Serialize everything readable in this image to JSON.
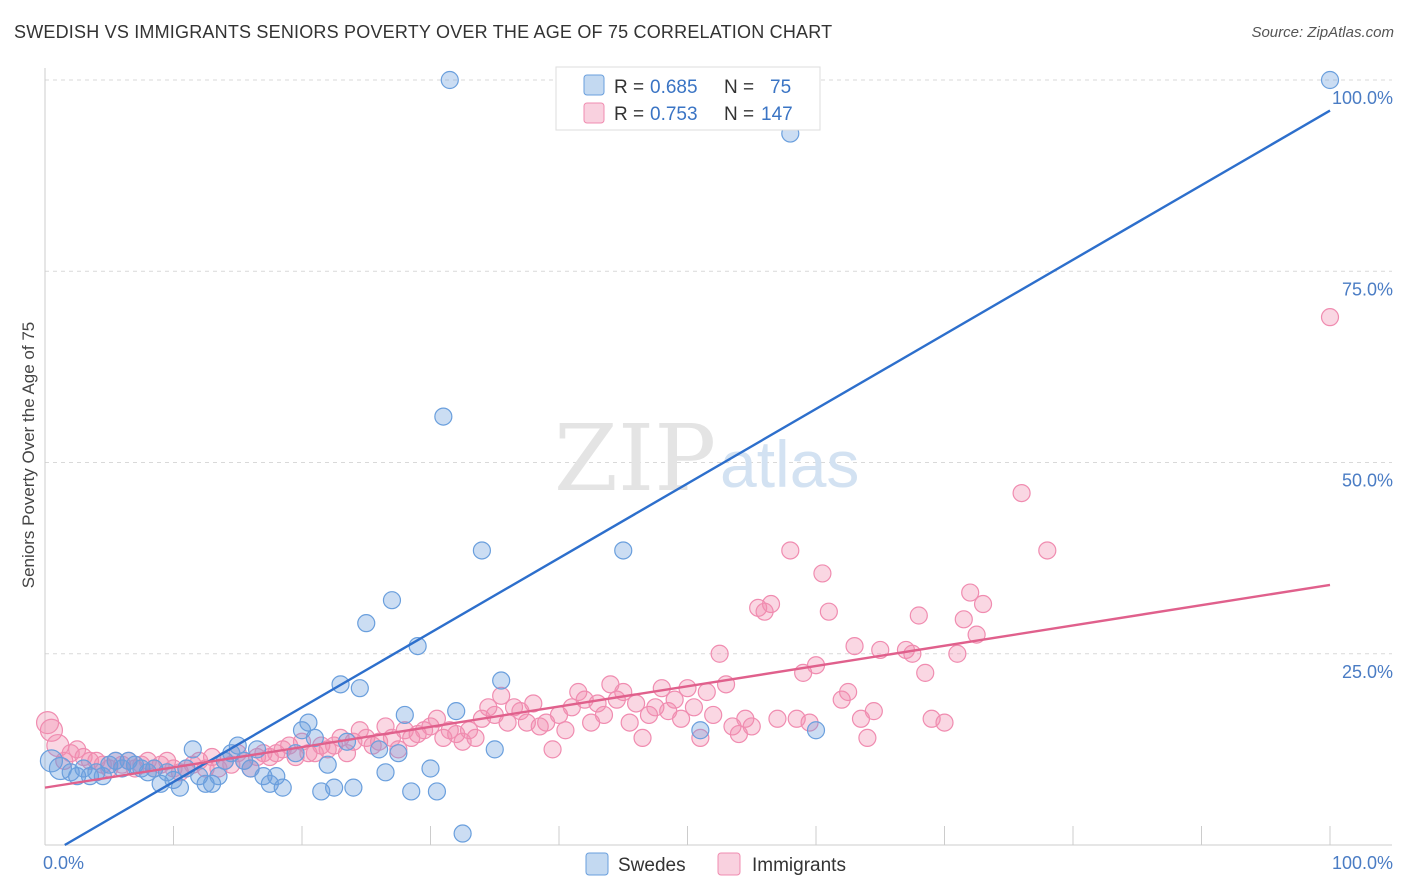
{
  "title": "SWEDISH VS IMMIGRANTS SENIORS POVERTY OVER THE AGE OF 75 CORRELATION CHART",
  "source": "Source: ZipAtlas.com",
  "watermark": {
    "zip": "ZIP",
    "atlas": "atlas"
  },
  "colors": {
    "swedes": "#6a9fdd",
    "swedes_line": "#2d6fcc",
    "immigrants": "#f08cb0",
    "immigrants_line": "#e0608c"
  },
  "legend": {
    "r_label": "R =",
    "n_label": "N =",
    "rows": [
      {
        "r": "0.685",
        "n": "75"
      },
      {
        "r": "0.753",
        "n": "147"
      }
    ]
  },
  "chart_data": {
    "type": "scatter",
    "title": "SWEDISH VS IMMIGRANTS SENIORS POVERTY OVER THE AGE OF 75 CORRELATION CHART",
    "xlabel": "",
    "ylabel": "Seniors Poverty Over the Age of 75",
    "xlim": [
      0,
      100
    ],
    "ylim": [
      0,
      100
    ],
    "x_tick_labels": [
      "0.0%",
      "100.0%"
    ],
    "y_tick_labels": [
      "25.0%",
      "50.0%",
      "75.0%",
      "100.0%"
    ],
    "y_ticks": [
      25,
      50,
      75,
      100
    ],
    "grid": true,
    "legend_position": "top-center",
    "series": [
      {
        "name": "Swedes",
        "trend": [
          [
            0,
            -1.5
          ],
          [
            100,
            96
          ]
        ],
        "points": [
          [
            0.5,
            11
          ],
          [
            1.2,
            10
          ],
          [
            2,
            9.5
          ],
          [
            2.5,
            9
          ],
          [
            3,
            10
          ],
          [
            3.5,
            9
          ],
          [
            4,
            9.5
          ],
          [
            4.5,
            9
          ],
          [
            5,
            10.5
          ],
          [
            5.5,
            11
          ],
          [
            6,
            10
          ],
          [
            6.5,
            11
          ],
          [
            7,
            10.5
          ],
          [
            7.5,
            10
          ],
          [
            8,
            9.5
          ],
          [
            8.5,
            10
          ],
          [
            9,
            8
          ],
          [
            9.5,
            9.5
          ],
          [
            10,
            8.5
          ],
          [
            10.5,
            7.5
          ],
          [
            11,
            10
          ],
          [
            11.5,
            12.5
          ],
          [
            12,
            9
          ],
          [
            12.5,
            8
          ],
          [
            13,
            8
          ],
          [
            13.5,
            9
          ],
          [
            14,
            11
          ],
          [
            14.5,
            12
          ],
          [
            15,
            13
          ],
          [
            15.5,
            11
          ],
          [
            16,
            10
          ],
          [
            16.5,
            12.5
          ],
          [
            17,
            9
          ],
          [
            17.5,
            8
          ],
          [
            18,
            9
          ],
          [
            18.5,
            7.5
          ],
          [
            19.5,
            12
          ],
          [
            20,
            15
          ],
          [
            20.5,
            16
          ],
          [
            21,
            14
          ],
          [
            21.5,
            7
          ],
          [
            22,
            10.5
          ],
          [
            22.5,
            7.5
          ],
          [
            23,
            21
          ],
          [
            23.5,
            13.5
          ],
          [
            24,
            7.5
          ],
          [
            24.5,
            20.5
          ],
          [
            25,
            29
          ],
          [
            26,
            12.5
          ],
          [
            26.5,
            9.5
          ],
          [
            27,
            32
          ],
          [
            27.5,
            12
          ],
          [
            28,
            17
          ],
          [
            28.5,
            7
          ],
          [
            29,
            26
          ],
          [
            30,
            10
          ],
          [
            30.5,
            7
          ],
          [
            31,
            56
          ],
          [
            31.5,
            100
          ],
          [
            32,
            17.5
          ],
          [
            32.5,
            1.5
          ],
          [
            34,
            38.5
          ],
          [
            35,
            12.5
          ],
          [
            35.5,
            21.5
          ],
          [
            45,
            38.5
          ],
          [
            51,
            15
          ],
          [
            54,
            100
          ],
          [
            58,
            93
          ],
          [
            60,
            15
          ],
          [
            100,
            100
          ]
        ]
      },
      {
        "name": "Immigrants",
        "trend": [
          [
            0,
            7.5
          ],
          [
            100,
            34
          ]
        ],
        "points": [
          [
            0.2,
            16
          ],
          [
            0.5,
            15
          ],
          [
            1,
            13
          ],
          [
            1.5,
            11
          ],
          [
            2,
            12
          ],
          [
            2.5,
            12.5
          ],
          [
            3,
            11.5
          ],
          [
            3.5,
            11
          ],
          [
            4,
            11
          ],
          [
            4.5,
            10.5
          ],
          [
            5,
            10
          ],
          [
            5.5,
            11
          ],
          [
            6,
            10.5
          ],
          [
            6.5,
            11
          ],
          [
            7,
            10
          ],
          [
            7.5,
            10.5
          ],
          [
            8,
            11
          ],
          [
            8.5,
            10
          ],
          [
            9,
            10.5
          ],
          [
            9.5,
            11
          ],
          [
            10,
            10
          ],
          [
            10.5,
            9.5
          ],
          [
            11,
            10
          ],
          [
            11.5,
            10.5
          ],
          [
            12,
            11
          ],
          [
            12.5,
            10
          ],
          [
            13,
            11.5
          ],
          [
            13.5,
            10
          ],
          [
            14,
            11
          ],
          [
            14.5,
            10.5
          ],
          [
            15,
            12
          ],
          [
            15.5,
            11
          ],
          [
            16,
            10
          ],
          [
            16.5,
            11.5
          ],
          [
            17,
            12
          ],
          [
            17.5,
            11.5
          ],
          [
            18,
            12
          ],
          [
            18.5,
            12.5
          ],
          [
            19,
            13
          ],
          [
            19.5,
            11.5
          ],
          [
            20,
            13.5
          ],
          [
            20.5,
            12
          ],
          [
            21,
            12
          ],
          [
            21.5,
            13
          ],
          [
            22,
            12.5
          ],
          [
            22.5,
            13
          ],
          [
            23,
            14
          ],
          [
            23.5,
            12
          ],
          [
            24,
            13.5
          ],
          [
            24.5,
            15
          ],
          [
            25,
            14
          ],
          [
            25.5,
            13
          ],
          [
            26,
            13.5
          ],
          [
            26.5,
            15.5
          ],
          [
            27,
            14
          ],
          [
            27.5,
            12.5
          ],
          [
            28,
            15
          ],
          [
            28.5,
            14
          ],
          [
            29,
            14.5
          ],
          [
            29.5,
            15
          ],
          [
            30,
            15.5
          ],
          [
            30.5,
            16.5
          ],
          [
            31,
            14
          ],
          [
            31.5,
            15
          ],
          [
            32,
            14.5
          ],
          [
            32.5,
            13.5
          ],
          [
            33,
            15
          ],
          [
            33.5,
            14
          ],
          [
            34,
            16.5
          ],
          [
            34.5,
            18
          ],
          [
            35,
            17
          ],
          [
            35.5,
            19.5
          ],
          [
            36,
            16
          ],
          [
            36.5,
            18
          ],
          [
            37,
            17.5
          ],
          [
            37.5,
            16
          ],
          [
            38,
            18.5
          ],
          [
            38.5,
            15.5
          ],
          [
            39,
            16
          ],
          [
            39.5,
            12.5
          ],
          [
            40,
            17
          ],
          [
            40.5,
            15
          ],
          [
            41,
            18
          ],
          [
            41.5,
            20
          ],
          [
            42,
            19
          ],
          [
            42.5,
            16
          ],
          [
            43,
            18.5
          ],
          [
            43.5,
            17
          ],
          [
            44,
            21
          ],
          [
            44.5,
            19
          ],
          [
            45,
            20
          ],
          [
            45.5,
            16
          ],
          [
            46,
            18.5
          ],
          [
            46.5,
            14
          ],
          [
            47,
            17
          ],
          [
            47.5,
            18
          ],
          [
            48,
            20.5
          ],
          [
            48.5,
            17.5
          ],
          [
            49,
            19
          ],
          [
            49.5,
            16.5
          ],
          [
            50,
            20.5
          ],
          [
            50.5,
            18
          ],
          [
            51,
            14
          ],
          [
            51.5,
            20
          ],
          [
            52,
            17
          ],
          [
            52.5,
            25
          ],
          [
            53,
            21
          ],
          [
            53.5,
            15.5
          ],
          [
            54,
            14.5
          ],
          [
            54.5,
            16.5
          ],
          [
            55,
            15.5
          ],
          [
            55.5,
            31
          ],
          [
            56,
            30.5
          ],
          [
            56.5,
            31.5
          ],
          [
            57,
            16.5
          ],
          [
            58,
            38.5
          ],
          [
            58.5,
            16.5
          ],
          [
            59,
            22.5
          ],
          [
            59.5,
            16
          ],
          [
            60,
            23.5
          ],
          [
            60.5,
            35.5
          ],
          [
            61,
            30.5
          ],
          [
            62,
            19
          ],
          [
            62.5,
            20
          ],
          [
            63,
            26
          ],
          [
            63.5,
            16.5
          ],
          [
            64,
            14
          ],
          [
            64.5,
            17.5
          ],
          [
            65,
            25.5
          ],
          [
            67,
            25.5
          ],
          [
            67.5,
            25
          ],
          [
            68,
            30
          ],
          [
            68.5,
            22.5
          ],
          [
            69,
            16.5
          ],
          [
            70,
            16
          ],
          [
            71,
            25
          ],
          [
            71.5,
            29.5
          ],
          [
            72,
            33
          ],
          [
            72.5,
            27.5
          ],
          [
            73,
            31.5
          ],
          [
            76,
            46
          ],
          [
            78,
            38.5
          ],
          [
            100,
            69
          ]
        ]
      }
    ]
  }
}
